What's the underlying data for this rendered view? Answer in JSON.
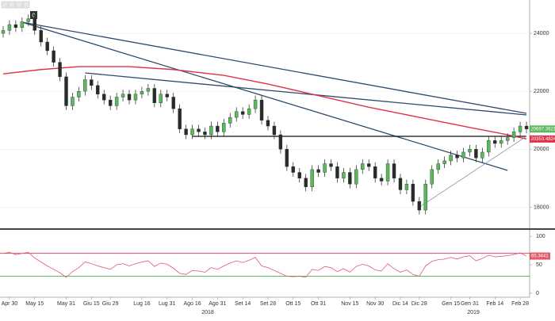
{
  "toolbar_badge": "0",
  "years": [
    "2018",
    "2019"
  ],
  "chart_data": [
    {
      "type": "candlestick",
      "categories": [
        null,
        "Apr 30",
        null,
        null,
        null,
        "May 15",
        null,
        null,
        null,
        null,
        "May 31",
        null,
        null,
        null,
        "Giu 15",
        null,
        null,
        "Giu 29",
        null,
        null,
        null,
        null,
        "Lug 16",
        null,
        null,
        null,
        "Lug 31",
        null,
        null,
        null,
        "Ago 16",
        null,
        null,
        null,
        "Ago 31",
        null,
        null,
        null,
        "Set 14",
        null,
        null,
        null,
        "Set 28",
        null,
        null,
        null,
        "Ott 15",
        null,
        null,
        null,
        "Ott 31",
        null,
        null,
        null,
        null,
        "Nov 15",
        null,
        null,
        null,
        "Nov 30",
        null,
        null,
        null,
        "Dic 14",
        null,
        null,
        "Dic 28",
        null,
        null,
        null,
        null,
        "Gen 15",
        null,
        null,
        "Gen 31",
        null,
        null,
        null,
        "Feb 14",
        null,
        null,
        null,
        "Feb 28",
        null
      ],
      "open": [
        24000,
        24100,
        24300,
        24200,
        24400,
        24500,
        24100,
        23700,
        23400,
        23000,
        22500,
        21500,
        21800,
        22000,
        22400,
        22200,
        21900,
        21700,
        21500,
        21800,
        21900,
        21700,
        21900,
        22000,
        22100,
        21600,
        21900,
        21800,
        21400,
        20700,
        20500,
        20700,
        20600,
        20500,
        20800,
        20600,
        20900,
        21100,
        21300,
        21200,
        21400,
        21700,
        21000,
        20800,
        20500,
        20000,
        19400,
        19200,
        19000,
        18700,
        19300,
        19200,
        19500,
        19400,
        19000,
        19200,
        18800,
        19300,
        19500,
        19400,
        19000,
        18900,
        19500,
        19000,
        18600,
        18800,
        18200,
        17900,
        18800,
        19300,
        19500,
        19600,
        19800,
        19700,
        19900,
        20000,
        19700,
        19900,
        20300,
        20200,
        20300,
        20400,
        20600,
        20800
      ],
      "high": [
        24250,
        24450,
        24450,
        24550,
        24650,
        24650,
        24250,
        23850,
        23550,
        23150,
        22650,
        21950,
        22150,
        22550,
        22550,
        22350,
        22050,
        21850,
        21950,
        22050,
        22050,
        22050,
        22150,
        22250,
        22250,
        22050,
        22050,
        21950,
        21550,
        20850,
        20850,
        20850,
        20750,
        20950,
        20950,
        21050,
        21250,
        21450,
        21450,
        21550,
        21850,
        21850,
        21150,
        20950,
        20650,
        20150,
        19550,
        19350,
        19150,
        19450,
        19450,
        19650,
        19650,
        19550,
        19350,
        19350,
        19450,
        19650,
        19650,
        19550,
        19150,
        19650,
        19650,
        19150,
        18950,
        18950,
        18350,
        18950,
        19450,
        19650,
        19750,
        19950,
        19950,
        20050,
        20150,
        20150,
        20050,
        20450,
        20450,
        20450,
        20550,
        20750,
        20950,
        20950
      ],
      "low": [
        23850,
        23950,
        24050,
        24050,
        24250,
        23950,
        23550,
        23250,
        22850,
        22350,
        21350,
        21350,
        21650,
        21850,
        22050,
        21750,
        21550,
        21350,
        21350,
        21650,
        21550,
        21550,
        21750,
        21850,
        21450,
        21450,
        21650,
        21250,
        20550,
        20350,
        20350,
        20450,
        20350,
        20350,
        20450,
        20450,
        20750,
        20950,
        21050,
        21050,
        21250,
        20850,
        20650,
        20350,
        19850,
        19250,
        19050,
        18850,
        18550,
        18550,
        19050,
        19050,
        19250,
        18850,
        18850,
        18650,
        18650,
        19150,
        19250,
        18850,
        18750,
        18750,
        18850,
        18450,
        18450,
        18050,
        17750,
        17750,
        18650,
        19150,
        19350,
        19450,
        19550,
        19550,
        19750,
        19550,
        19550,
        19750,
        20050,
        20050,
        20150,
        20250,
        20450,
        20550
      ],
      "close": [
        24100,
        24300,
        24200,
        24400,
        24500,
        24100,
        23700,
        23400,
        23000,
        22500,
        21500,
        21800,
        22000,
        22400,
        22200,
        21900,
        21700,
        21500,
        21800,
        21900,
        21700,
        21900,
        22000,
        22100,
        21600,
        21900,
        21800,
        21400,
        20700,
        20500,
        20700,
        20600,
        20500,
        20800,
        20600,
        20900,
        21100,
        21300,
        21200,
        21400,
        21700,
        21000,
        20800,
        20500,
        20000,
        19400,
        19200,
        19000,
        18700,
        19300,
        19200,
        19500,
        19400,
        19000,
        19200,
        18800,
        19300,
        19500,
        19400,
        19000,
        18900,
        19500,
        19000,
        18600,
        18800,
        18200,
        17900,
        18800,
        19300,
        19500,
        19600,
        19800,
        19700,
        19900,
        20000,
        19700,
        19900,
        20300,
        20200,
        20300,
        20400,
        20600,
        20800,
        20697.3621
      ],
      "up_color": "#5cb85c",
      "down_color": "#2a2a2a",
      "moving_average": {
        "color": "#e0314b",
        "x": [
          0,
          6,
          12,
          20,
          27,
          35,
          42,
          50,
          58,
          66,
          74,
          80,
          83
        ],
        "values": [
          22600,
          22750,
          22850,
          22850,
          22750,
          22550,
          22250,
          21850,
          21450,
          21100,
          20750,
          20500,
          20353.4824
        ]
      },
      "trendlines": [
        {
          "color": "#2d4a6e",
          "x": [
            3,
            83
          ],
          "values": [
            24384,
            21239
          ]
        },
        {
          "color": "#2d4a6e",
          "x": [
            3,
            80
          ],
          "values": [
            24384,
            19270
          ]
        },
        {
          "color": "#2d4a6e",
          "x": [
            13,
            83
          ],
          "values": [
            22634,
            21184
          ]
        },
        {
          "color": "#111111",
          "x": [
            30,
            83
          ],
          "values": [
            20446,
            20446
          ]
        },
        {
          "color": "#8a96aa",
          "x": [
            66,
            83
          ],
          "values": [
            18000,
            20446
          ]
        }
      ],
      "ylim": [
        17300,
        25150
      ],
      "yticks": [
        18000,
        20000,
        22000,
        24000
      ],
      "grid": true
    },
    {
      "type": "line",
      "color": "#e05a6a",
      "values": [
        70,
        72,
        68,
        70,
        72,
        62,
        55,
        48,
        42,
        36,
        28,
        38,
        45,
        55,
        52,
        48,
        45,
        42,
        50,
        52,
        48,
        52,
        55,
        57,
        47,
        53,
        51,
        44,
        35,
        33,
        40,
        39,
        37,
        45,
        42,
        48,
        53,
        57,
        54,
        58,
        63,
        48,
        45,
        40,
        35,
        30,
        29,
        30,
        28,
        42,
        40,
        47,
        45,
        38,
        43,
        37,
        47,
        51,
        48,
        41,
        39,
        52,
        43,
        37,
        41,
        33,
        30,
        48,
        56,
        59,
        60,
        63,
        60,
        64,
        66,
        57,
        61,
        67,
        64,
        65,
        66,
        68,
        71,
        65.3441
      ],
      "hlines": [
        {
          "value": 70,
          "color": "#e0314b"
        },
        {
          "value": 30,
          "color": "#3cb043"
        }
      ],
      "ylim": [
        -7,
        110
      ],
      "yticks": [
        0,
        50,
        100
      ]
    }
  ]
}
